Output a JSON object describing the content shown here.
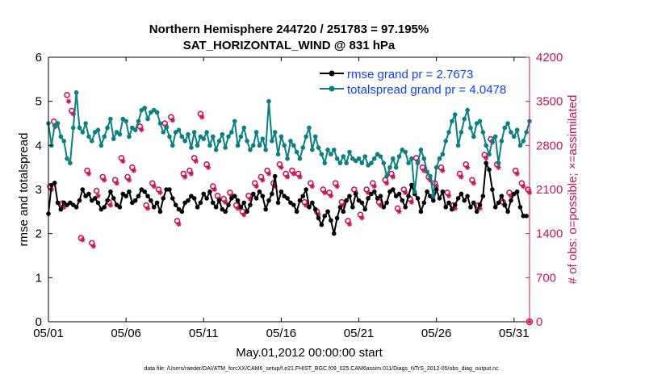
{
  "chart_data": {
    "type": "line",
    "title_line1": "Northern Hemisphere 244720 / 251783 = 97.195%",
    "title_line2": "SAT_HORIZONTAL_WIND @ 831 hPa",
    "xlabel": "May.01,2012 00:00:00 start",
    "ylabel_left": "rmse and totalspread",
    "ylabel_right": "# of obs: o=possible; ×=assimilated",
    "footer": "data file: /Users/raeder/DAI/ATM_forcXX/CAM6_setup/f.e21.FHIST_BGC.f09_025.CAM6assim.011/Diags_NTrS_2012-05/obs_diag_output.nc",
    "x_ticks": [
      "05/01",
      "05/06",
      "05/11",
      "05/16",
      "05/21",
      "05/26",
      "05/31"
    ],
    "x_tick_days": [
      0,
      5,
      10,
      15,
      20,
      25,
      30
    ],
    "xlim": [
      0,
      31
    ],
    "ylim_left": [
      0,
      6
    ],
    "y_ticks_left": [
      "0",
      "1",
      "2",
      "3",
      "4",
      "5",
      "6"
    ],
    "ylim_right": [
      0,
      4200
    ],
    "y_ticks_right": [
      "0",
      "700",
      "1400",
      "2100",
      "2800",
      "3500",
      "4200"
    ],
    "legend_position": "top-right",
    "colors": {
      "rmse": "#000000",
      "totalspread": "#0a8080",
      "obs": "#cc1456",
      "axis_right": "#cc1456",
      "legend_text": "#1040ff"
    },
    "x_step_days": 0.25,
    "series": [
      {
        "name": "rmse grand pr = 2.7673",
        "axis": "left",
        "values": [
          2.45,
          3.1,
          3.15,
          2.7,
          2.55,
          2.7,
          2.65,
          2.7,
          2.65,
          2.6,
          2.75,
          3.0,
          2.85,
          2.9,
          2.75,
          2.8,
          2.7,
          2.55,
          2.6,
          2.75,
          2.95,
          2.8,
          2.65,
          2.6,
          2.9,
          2.85,
          2.95,
          2.7,
          2.75,
          2.85,
          3.0,
          2.95,
          2.85,
          2.75,
          2.6,
          2.7,
          2.5,
          2.8,
          3.0,
          3.0,
          2.8,
          2.65,
          2.55,
          2.5,
          2.7,
          2.75,
          2.85,
          2.8,
          2.6,
          2.7,
          2.9,
          2.8,
          2.95,
          2.7,
          2.6,
          2.75,
          2.55,
          2.5,
          2.65,
          2.8,
          2.85,
          2.75,
          2.6,
          2.7,
          2.5,
          2.65,
          2.9,
          2.8,
          2.95,
          2.85,
          2.55,
          2.75,
          2.9,
          3.3,
          2.7,
          2.95,
          2.85,
          2.8,
          2.7,
          2.65,
          2.5,
          2.75,
          2.85,
          3.0,
          2.6,
          2.7,
          2.55,
          2.35,
          2.2,
          2.4,
          2.5,
          2.3,
          2.0,
          2.35,
          2.6,
          2.5,
          2.75,
          2.85,
          2.6,
          2.9,
          2.75,
          2.7,
          2.55,
          2.8,
          2.9,
          2.95,
          2.8,
          2.85,
          2.6,
          2.7,
          2.95,
          3.0,
          2.85,
          2.9,
          2.75,
          2.6,
          2.85,
          3.1,
          2.9,
          2.8,
          2.5,
          2.7,
          2.95,
          2.85,
          2.75,
          3.0,
          2.8,
          2.95,
          2.6,
          2.7,
          2.55,
          2.65,
          2.8,
          2.9,
          2.75,
          2.85,
          2.6,
          2.7,
          2.5,
          2.65,
          2.85,
          3.6,
          3.45,
          3.0,
          2.6,
          2.7,
          2.85,
          2.65,
          2.5,
          2.75,
          2.9,
          2.95,
          2.6,
          2.4,
          2.4
        ],
        "step": 0.2
      },
      {
        "name": "totalspread grand pr = 4.0478",
        "axis": "left",
        "values": [
          4.5,
          4.0,
          4.45,
          4.5,
          4.2,
          4.1,
          3.7,
          3.6,
          4.4,
          5.2,
          4.4,
          4.3,
          4.5,
          4.2,
          4.1,
          4.3,
          4.35,
          4.0,
          4.2,
          4.4,
          4.6,
          4.15,
          4.3,
          4.25,
          4.6,
          4.55,
          4.2,
          4.4,
          4.35,
          4.55,
          4.8,
          4.85,
          4.6,
          4.75,
          4.8,
          4.75,
          4.5,
          4.3,
          4.4,
          4.2,
          4.0,
          4.3,
          4.35,
          4.2,
          4.1,
          4.25,
          3.95,
          4.3,
          4.0,
          4.2,
          4.15,
          4.3,
          4.0,
          4.2,
          3.9,
          4.1,
          4.25,
          3.95,
          4.2,
          4.3,
          4.55,
          4.0,
          4.2,
          4.4,
          4.1,
          3.9,
          4.0,
          4.3,
          4.0,
          4.15,
          3.9,
          5.0,
          4.1,
          4.3,
          3.8,
          4.2,
          4.0,
          3.7,
          4.1,
          4.0,
          3.85,
          3.7,
          3.95,
          4.2,
          4.4,
          3.9,
          4.2,
          3.95,
          3.8,
          3.6,
          3.9,
          3.8,
          3.9,
          3.7,
          3.6,
          3.75,
          3.6,
          3.85,
          3.7,
          3.65,
          3.7,
          3.6,
          3.75,
          3.55,
          3.6,
          3.7,
          3.8,
          3.75,
          3.6,
          3.3,
          3.5,
          3.7,
          3.5,
          3.75,
          3.9,
          3.85,
          3.6,
          3.7,
          2.95,
          3.6,
          3.9,
          3.7,
          3.4,
          3.3,
          2.85,
          3.5,
          3.7,
          3.8,
          4.1,
          4.3,
          4.55,
          4.7,
          4.0,
          4.3,
          4.6,
          4.8,
          4.4,
          4.2,
          4.5,
          4.55,
          4.3,
          4.0,
          3.8,
          4.1,
          4.2,
          3.6,
          4.1,
          4.4,
          4.5,
          4.3,
          4.2,
          4.35,
          4.0,
          4.1,
          4.3,
          4.55
        ],
        "step": 0.2
      }
    ],
    "obs_series": [
      {
        "name": "possible",
        "marker": "o",
        "axis": "right",
        "x": [
          0.1,
          0.35,
          0.9,
          1.2,
          1.5,
          2.1,
          2.5,
          2.8,
          3.1,
          3.5,
          3.9,
          4.3,
          4.7,
          5.1,
          5.4,
          5.9,
          6.3,
          6.7,
          7.1,
          7.5,
          7.9,
          8.3,
          8.7,
          9.1,
          9.4,
          9.8,
          10.2,
          10.6,
          10.9,
          11.3,
          11.7,
          12.1,
          12.5,
          12.9,
          13.3,
          13.7,
          14.1,
          14.5,
          14.9,
          15.3,
          15.7,
          16.1,
          16.5,
          16.9,
          17.3,
          17.7,
          18.1,
          18.5,
          18.9,
          19.3,
          19.7,
          20.1,
          20.5,
          20.9,
          21.3,
          21.7,
          22.1,
          22.5,
          22.9,
          23.3,
          23.7,
          24.1,
          24.5,
          24.9,
          25.3,
          25.7,
          26.1,
          26.5,
          26.9,
          27.3,
          27.7,
          28.1,
          28.5,
          28.9,
          29.3,
          29.7,
          30.1,
          30.5,
          30.9
        ],
        "values": [
          2150,
          3180,
          1880,
          3600,
          3350,
          1330,
          2400,
          1250,
          2080,
          2300,
          1900,
          2250,
          2600,
          2300,
          2450,
          3100,
          1850,
          2200,
          2100,
          3150,
          3250,
          1600,
          2350,
          2400,
          2600,
          3300,
          2500,
          2150,
          2000,
          1950,
          2050,
          1850,
          1750,
          2000,
          2200,
          2300,
          2400,
          2200,
          2500,
          2350,
          2400,
          2350,
          1900,
          2200,
          1750,
          2100,
          2050,
          2200,
          1900,
          1600,
          2100,
          1700,
          2100,
          2200,
          1900,
          2250,
          2350,
          1800,
          2100,
          1950,
          2600,
          2450,
          2300,
          2200,
          2450,
          2050,
          1850,
          2350,
          2500,
          2250,
          1850,
          2650,
          2900,
          2500,
          1900,
          2050,
          2400,
          2200,
          2100
        ],
        "last_value": 0
      },
      {
        "name": "assimilated",
        "marker": "*",
        "axis": "right",
        "x": [
          0.2,
          0.45,
          1.0,
          1.3,
          1.6,
          2.2,
          2.6,
          2.9,
          3.2,
          3.6,
          4.0,
          4.4,
          4.8,
          5.2,
          5.5,
          6.0,
          6.4,
          6.8,
          7.2,
          7.6,
          8.0,
          8.4,
          8.8,
          9.2,
          9.5,
          9.9,
          10.3,
          10.7,
          11.0,
          11.4,
          11.8,
          12.2,
          12.6,
          13.0,
          13.4,
          13.8,
          14.2,
          14.6,
          15.0,
          15.4,
          15.8,
          16.2,
          16.6,
          17.0,
          17.4,
          17.8,
          18.2,
          18.6,
          19.0,
          19.4,
          19.8,
          20.2,
          20.6,
          21.0,
          21.4,
          21.8,
          22.2,
          22.6,
          23.0,
          23.4,
          23.8,
          24.2,
          24.6,
          25.0,
          25.4,
          25.8,
          26.2,
          26.6,
          27.0,
          27.4,
          27.8,
          28.2,
          28.6,
          29.0,
          29.4,
          29.8,
          30.2,
          30.6,
          31.0
        ],
        "values": [
          2100,
          3100,
          1820,
          3500,
          3300,
          1300,
          2350,
          1200,
          2000,
          2250,
          1850,
          2200,
          2550,
          2250,
          2400,
          3050,
          1800,
          2150,
          2050,
          3100,
          3200,
          1550,
          2300,
          2350,
          2550,
          3250,
          2450,
          2100,
          1950,
          1900,
          2000,
          1800,
          1700,
          1950,
          2150,
          2250,
          2350,
          2150,
          2450,
          2300,
          2350,
          2300,
          1850,
          2150,
          1700,
          2050,
          2000,
          2150,
          1850,
          1550,
          2050,
          1650,
          2050,
          2150,
          1850,
          2200,
          2300,
          1750,
          2050,
          1900,
          2550,
          2400,
          2250,
          2150,
          2400,
          2000,
          1800,
          2300,
          2450,
          2200,
          1800,
          2600,
          2850,
          2450,
          1850,
          2000,
          2350,
          2150,
          2050
        ],
        "last_value": 0
      }
    ]
  }
}
